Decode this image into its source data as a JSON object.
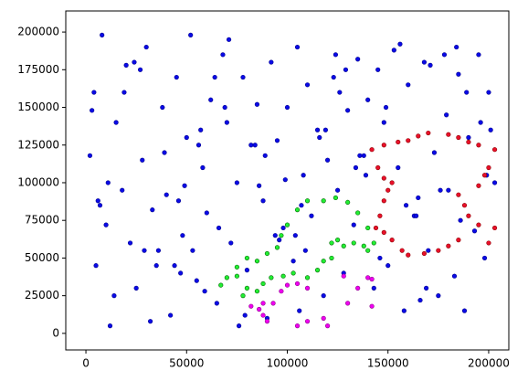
{
  "chart_data": {
    "type": "scatter",
    "xlim": [
      -10000,
      210000
    ],
    "ylim": [
      -11000,
      214000
    ],
    "xticks": [
      0,
      50000,
      100000,
      150000,
      200000
    ],
    "yticks": [
      0,
      25000,
      50000,
      75000,
      100000,
      125000,
      150000,
      175000,
      200000
    ],
    "grid": false,
    "series": [
      {
        "color": "#0a0ae6",
        "edge": "#00008b",
        "x": [
          2000,
          5000,
          8000,
          4000,
          10000,
          12000,
          15000,
          18000,
          20000,
          22000,
          25000,
          28000,
          30000,
          33000,
          35000,
          38000,
          40000,
          42000,
          45000,
          48000,
          50000,
          52000,
          55000,
          58000,
          60000,
          62000,
          65000,
          68000,
          70000,
          72000,
          75000,
          78000,
          80000,
          82000,
          85000,
          88000,
          90000,
          92000,
          95000,
          98000,
          100000,
          103000,
          105000,
          108000,
          110000,
          112000,
          115000,
          118000,
          120000,
          123000,
          125000,
          128000,
          130000,
          133000,
          135000,
          138000,
          140000,
          143000,
          145000,
          148000,
          150000,
          153000,
          155000,
          158000,
          160000,
          163000,
          165000,
          168000,
          170000,
          173000,
          175000,
          178000,
          180000,
          183000,
          185000,
          188000,
          190000,
          193000,
          195000,
          198000,
          200000,
          203000,
          7000,
          14000,
          24000,
          36000,
          46000,
          56000,
          66000,
          76000,
          86000,
          96000,
          106000,
          116000,
          126000,
          136000,
          146000,
          156000,
          166000,
          176000,
          186000,
          196000,
          3000,
          11000,
          19000,
          29000,
          39000,
          49000,
          59000,
          69000,
          79000,
          89000,
          99000,
          109000,
          119000,
          129000,
          139000,
          149000,
          159000,
          169000,
          179000,
          189000,
          199000,
          32000,
          44000,
          53000,
          64000,
          84000,
          104000,
          124000,
          164000,
          184000,
          6000,
          27000,
          47000,
          57000,
          71000,
          94000,
          107000,
          134000,
          171000,
          201000
        ],
        "values": [
          118000,
          45000,
          198000,
          160000,
          72000,
          5000,
          140000,
          95000,
          178000,
          60000,
          30000,
          115000,
          190000,
          82000,
          45000,
          150000,
          92000,
          12000,
          170000,
          65000,
          130000,
          198000,
          35000,
          110000,
          80000,
          155000,
          20000,
          185000,
          140000,
          60000,
          100000,
          170000,
          42000,
          125000,
          152000,
          88000,
          10000,
          180000,
          128000,
          70000,
          150000,
          48000,
          190000,
          105000,
          165000,
          78000,
          135000,
          25000,
          115000,
          170000,
          95000,
          40000,
          148000,
          72000,
          182000,
          118000,
          155000,
          30000,
          175000,
          140000,
          45000,
          188000,
          110000,
          15000,
          165000,
          78000,
          90000,
          180000,
          55000,
          120000,
          25000,
          185000,
          95000,
          38000,
          172000,
          15000,
          130000,
          68000,
          185000,
          50000,
          160000,
          100000,
          85000,
          25000,
          180000,
          55000,
          88000,
          125000,
          70000,
          5000,
          98000,
          62000,
          15000,
          130000,
          160000,
          118000,
          50000,
          192000,
          22000,
          95000,
          75000,
          140000,
          148000,
          100000,
          160000,
          55000,
          120000,
          98000,
          28000,
          150000,
          12000,
          118000,
          102000,
          55000,
          135000,
          175000,
          105000,
          150000,
          85000,
          30000,
          145000,
          160000,
          105000,
          8000,
          45000,
          55000,
          170000,
          125000,
          65000,
          185000,
          78000,
          190000,
          88000,
          175000,
          40000,
          135000,
          195000,
          65000,
          85000,
          110000,
          178000,
          135000
        ]
      },
      {
        "color": "#e8102a",
        "edge": "#8b0000",
        "x": [
          142000,
          148000,
          155000,
          160000,
          165000,
          170000,
          180000,
          185000,
          190000,
          195000,
          203000,
          200000,
          198000,
          195000,
          185000,
          188000,
          190000,
          195000,
          185000,
          180000,
          175000,
          168000,
          160000,
          157000,
          152000,
          148000,
          146000,
          148000,
          150000,
          152000,
          148000,
          145000,
          144000,
          200000,
          203000
        ],
        "values": [
          122000,
          125000,
          127000,
          128000,
          131000,
          133000,
          132000,
          130000,
          127000,
          125000,
          122000,
          110000,
          105000,
          98000,
          92000,
          85000,
          78000,
          72000,
          62000,
          58000,
          55000,
          53000,
          52000,
          55000,
          62000,
          67000,
          78000,
          88000,
          95000,
          100000,
          103000,
          110000,
          70000,
          60000,
          70000
        ]
      },
      {
        "color": "#22ee33",
        "edge": "#006400",
        "x": [
          67000,
          70000,
          75000,
          80000,
          85000,
          88000,
          92000,
          98000,
          103000,
          110000,
          115000,
          118000,
          122000,
          128000,
          133000,
          138000,
          140000,
          143000,
          140000,
          135000,
          130000,
          124000,
          118000,
          110000,
          105000,
          100000,
          97000,
          95000,
          90000,
          85000,
          80000,
          75000,
          122000,
          125000,
          78000
        ],
        "values": [
          32000,
          37000,
          38000,
          30000,
          28000,
          33000,
          37000,
          38000,
          40000,
          37000,
          42000,
          48000,
          50000,
          58000,
          60000,
          58000,
          55000,
          60000,
          70000,
          80000,
          87000,
          90000,
          88000,
          88000,
          82000,
          72000,
          65000,
          57000,
          53000,
          48000,
          50000,
          44000,
          60000,
          62000,
          25000
        ]
      },
      {
        "color": "#ee00ee",
        "edge": "#8b008b",
        "x": [
          82000,
          86000,
          88000,
          90000,
          93000,
          97000,
          100000,
          105000,
          110000,
          105000,
          110000,
          118000,
          120000,
          128000,
          135000,
          140000,
          142000,
          130000,
          142000,
          88000
        ],
        "values": [
          18000,
          16000,
          12000,
          8000,
          20000,
          28000,
          32000,
          33000,
          30000,
          5000,
          8000,
          10000,
          5000,
          38000,
          30000,
          37000,
          36000,
          20000,
          18000,
          20000
        ]
      }
    ]
  }
}
